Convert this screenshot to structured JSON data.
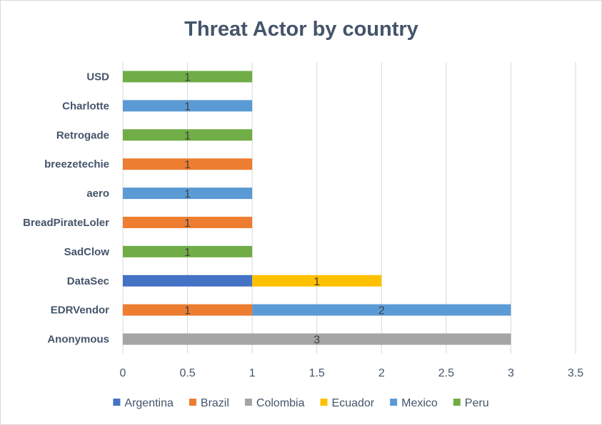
{
  "chart_data": {
    "type": "bar",
    "orientation": "horizontal",
    "stacked": true,
    "title": "Threat Actor by country",
    "xlabel": "",
    "ylabel": "",
    "xlim": [
      0,
      3.5
    ],
    "x_ticks": [
      "0",
      "0.5",
      "1",
      "1.5",
      "2",
      "2.5",
      "3",
      "3.5"
    ],
    "grid": true,
    "legend_position": "bottom",
    "categories": [
      "Anonymous",
      "EDRVendor",
      "DataSec",
      "SadClow",
      "BreadPirateLoler",
      "aero",
      "breezetechie",
      "Retrogade",
      "Charlotte",
      "USD"
    ],
    "series": [
      {
        "name": "Argentina",
        "color": "#4472c4",
        "values": [
          0,
          0,
          1,
          0,
          0,
          0,
          0,
          0,
          0,
          0
        ]
      },
      {
        "name": "Brazil",
        "color": "#ed7d31",
        "values": [
          0,
          1,
          0,
          0,
          1,
          0,
          1,
          0,
          0,
          0
        ]
      },
      {
        "name": "Colombia",
        "color": "#a5a5a5",
        "values": [
          3,
          0,
          0,
          0,
          0,
          0,
          0,
          0,
          0,
          0
        ]
      },
      {
        "name": "Ecuador",
        "color": "#ffc000",
        "values": [
          0,
          0,
          1,
          0,
          0,
          0,
          0,
          0,
          0,
          0
        ]
      },
      {
        "name": "Mexico",
        "color": "#5b9bd5",
        "values": [
          0,
          2,
          0,
          0,
          0,
          1,
          0,
          0,
          1,
          0
        ]
      },
      {
        "name": "Peru",
        "color": "#70ad47",
        "values": [
          0,
          0,
          0,
          1,
          0,
          0,
          0,
          1,
          0,
          1
        ]
      }
    ],
    "data_labels_shown": {
      "Argentina": [
        false,
        false,
        false,
        false,
        false,
        false,
        false,
        false,
        false,
        false
      ]
    }
  }
}
